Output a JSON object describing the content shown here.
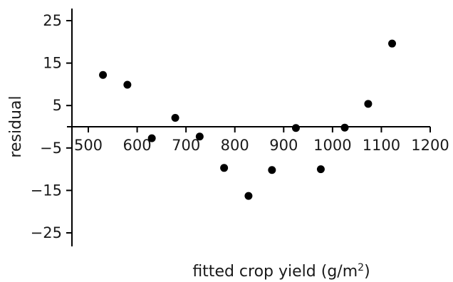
{
  "chart_data": {
    "type": "scatter",
    "xlabel": "fitted crop yield (g/m",
    "xlabel_superscript": "2",
    "xlabel_suffix": ")",
    "ylabel": "residual",
    "xlim": [
      500,
      1200
    ],
    "ylim": [
      -25,
      25
    ],
    "x_ticks": [
      500,
      600,
      700,
      800,
      900,
      1000,
      1100,
      1200
    ],
    "y_ticks": [
      25,
      15,
      5,
      -5,
      -15,
      -25
    ],
    "x_tick_labels": [
      "500",
      "600",
      "700",
      "800",
      "900",
      "1000",
      "1100",
      "1200"
    ],
    "y_tick_labels": [
      "25",
      "15",
      "5",
      "−5",
      "−15",
      "−25"
    ],
    "grid": false,
    "marker_color": "#000000",
    "points": [
      {
        "x": 530,
        "y": 12.2
      },
      {
        "x": 580,
        "y": 9.9
      },
      {
        "x": 630,
        "y": -2.7
      },
      {
        "x": 678,
        "y": 2.1
      },
      {
        "x": 728,
        "y": -2.3
      },
      {
        "x": 778,
        "y": -9.7
      },
      {
        "x": 828,
        "y": -16.3
      },
      {
        "x": 876,
        "y": -10.2
      },
      {
        "x": 925,
        "y": -0.3
      },
      {
        "x": 976,
        "y": -10.0
      },
      {
        "x": 1025,
        "y": -0.2
      },
      {
        "x": 1073,
        "y": 5.4
      },
      {
        "x": 1122,
        "y": 19.6
      }
    ]
  }
}
